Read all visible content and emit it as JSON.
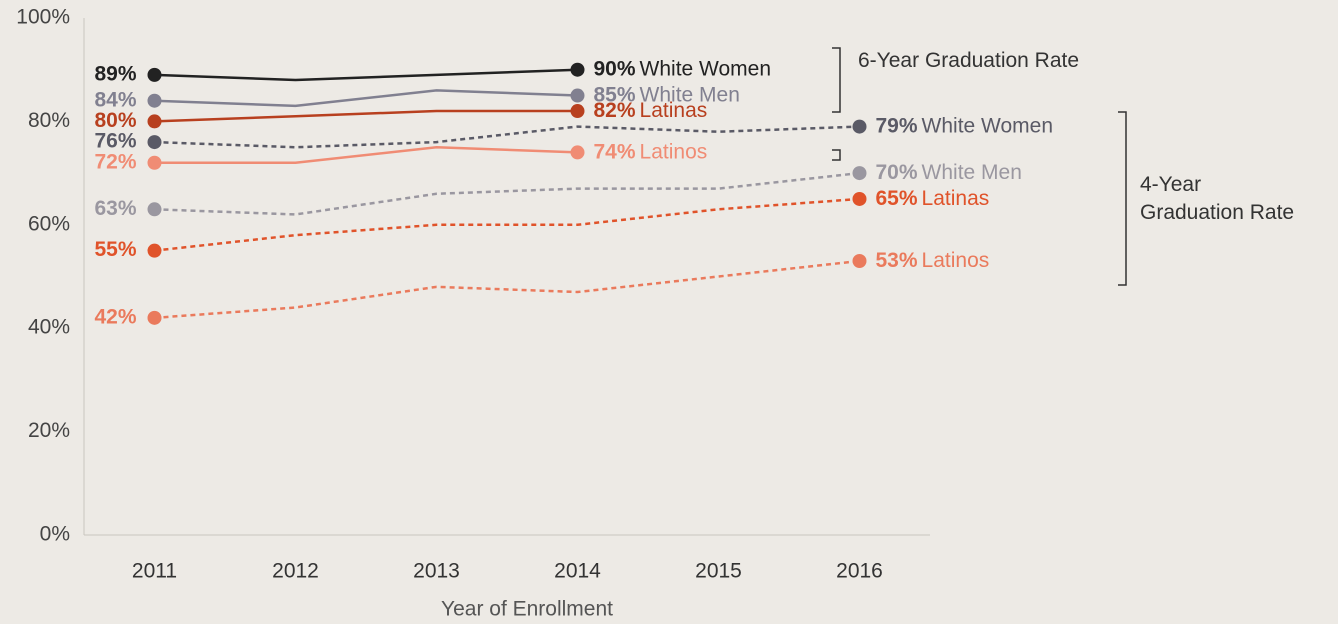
{
  "chart_data": {
    "type": "line",
    "x_label": "Year of Enrollment",
    "categories": [
      "2011",
      "2012",
      "2013",
      "2014",
      "2015",
      "2016"
    ],
    "ylim": [
      0,
      100
    ],
    "yticks": [
      {
        "value": 0,
        "label": "0%"
      },
      {
        "value": 20,
        "label": "20%"
      },
      {
        "value": 40,
        "label": "40%"
      },
      {
        "value": 60,
        "label": "60%"
      },
      {
        "value": 80,
        "label": "80%"
      },
      {
        "value": 100,
        "label": "100%"
      }
    ],
    "annotations": [
      "6-Year Graduation Rate",
      "4-Year Graduation Rate"
    ],
    "series": [
      {
        "name": "White Women",
        "color": "#222222",
        "dashed": false,
        "values": [
          89,
          88,
          89,
          90,
          null,
          null
        ],
        "value_labels": [
          "89%",
          null,
          null,
          "90%",
          null,
          null
        ]
      },
      {
        "name": "White Men",
        "color": "#818090",
        "dashed": false,
        "values": [
          84,
          83,
          86,
          85,
          null,
          null
        ],
        "value_labels": [
          "84%",
          null,
          null,
          "85%",
          null,
          null
        ]
      },
      {
        "name": "Latinas",
        "color": "#b8401f",
        "dashed": false,
        "values": [
          80,
          81,
          82,
          82,
          null,
          null
        ],
        "value_labels": [
          "80%",
          null,
          null,
          "82%",
          null,
          null
        ]
      },
      {
        "name": "Latinos",
        "color": "#f08c74",
        "dashed": false,
        "values": [
          72,
          72,
          75,
          74,
          null,
          null
        ],
        "value_labels": [
          "72%",
          null,
          null,
          "74%",
          null,
          null
        ]
      },
      {
        "name": "White Women",
        "color": "#5a5a66",
        "dashed": true,
        "values": [
          76,
          75,
          76,
          79,
          78,
          79
        ],
        "value_labels": [
          "76%",
          null,
          null,
          null,
          null,
          "79%"
        ]
      },
      {
        "name": "White Men",
        "color": "#9a97a0",
        "dashed": true,
        "values": [
          63,
          62,
          66,
          67,
          67,
          70
        ],
        "value_labels": [
          "63%",
          null,
          null,
          null,
          null,
          "70%"
        ]
      },
      {
        "name": "Latinas",
        "color": "#e0532a",
        "dashed": true,
        "values": [
          55,
          58,
          60,
          60,
          63,
          65
        ],
        "value_labels": [
          "55%",
          null,
          null,
          null,
          null,
          "65%"
        ]
      },
      {
        "name": "Latinos",
        "color": "#ea7a5c",
        "dashed": true,
        "values": [
          42,
          44,
          48,
          47,
          50,
          53
        ],
        "value_labels": [
          "42%",
          null,
          null,
          null,
          null,
          "53%"
        ]
      }
    ]
  }
}
